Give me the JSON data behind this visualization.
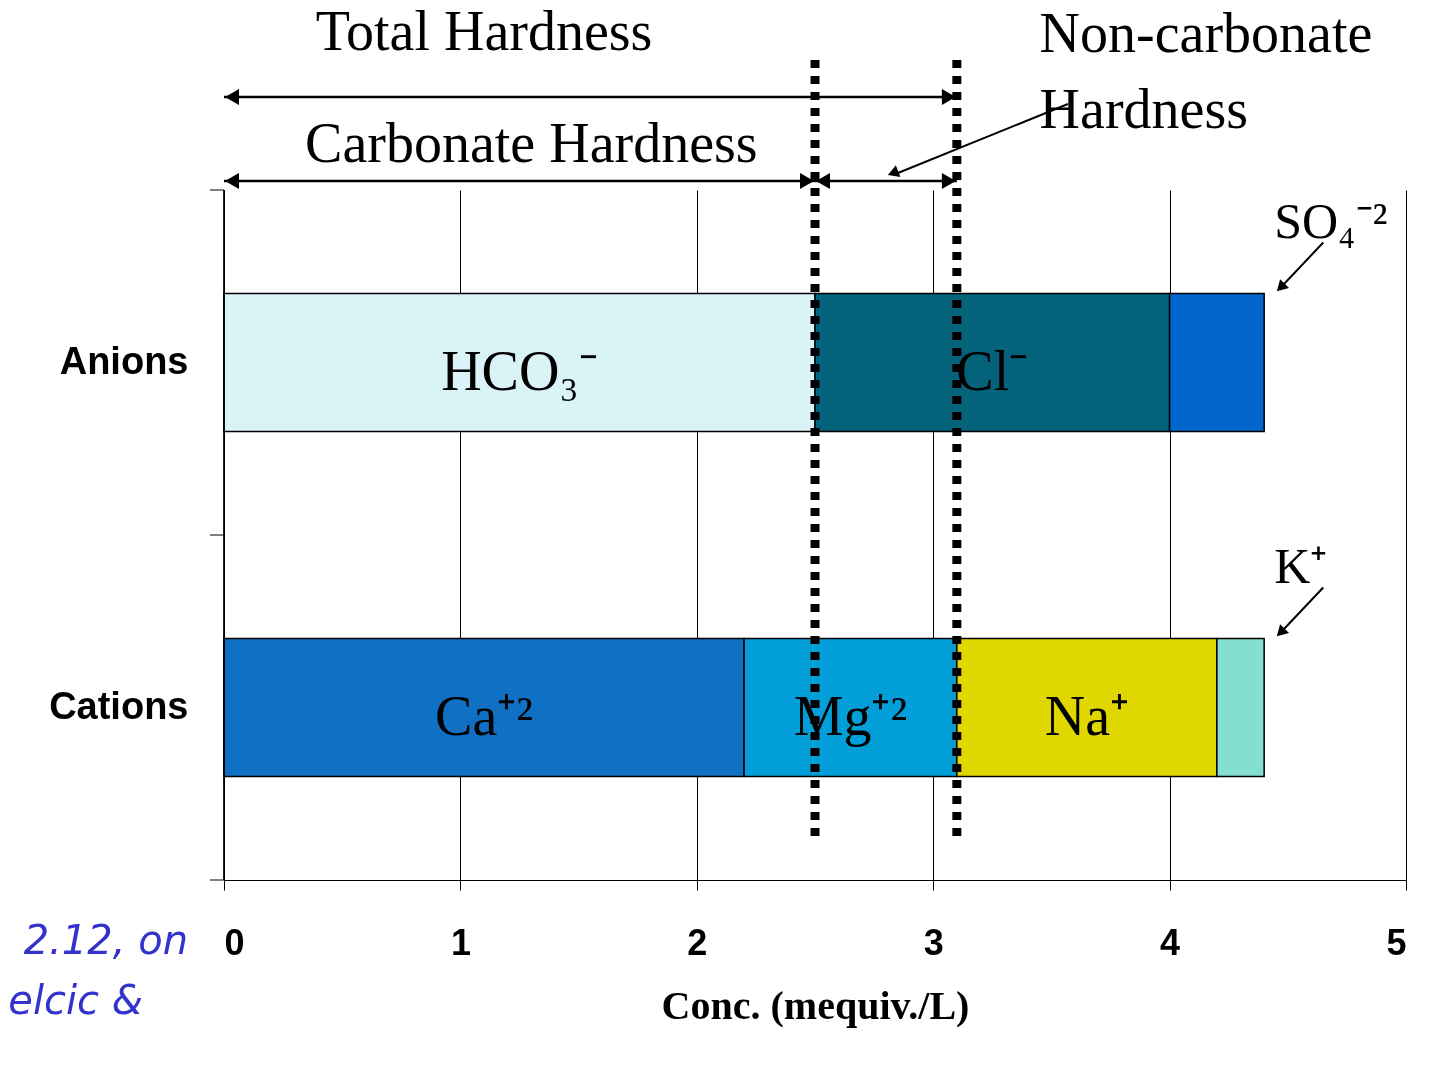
{
  "chart_data": {
    "type": "bar",
    "orientation": "horizontal",
    "stacked": true,
    "categories": [
      "Anions",
      "Cations"
    ],
    "series": [
      {
        "name": "HCO₃⁻",
        "color": "#daf3f7",
        "values": [
          2.5,
          null
        ]
      },
      {
        "name": "Cl⁻",
        "color": "#04627a",
        "values": [
          1.5,
          null
        ]
      },
      {
        "name": "SO₄⁻²",
        "color": "#0366cc",
        "values": [
          0.4,
          null
        ]
      },
      {
        "name": "Ca⁺²",
        "color": "#1070c4",
        "values": [
          null,
          2.2
        ]
      },
      {
        "name": "Mg⁺²",
        "color": "#029ed8",
        "values": [
          null,
          0.9
        ]
      },
      {
        "name": "Na⁺",
        "color": "#e0d700",
        "values": [
          null,
          1.1
        ]
      },
      {
        "name": "K⁺",
        "color": "#84dfd0",
        "values": [
          null,
          0.2
        ]
      }
    ],
    "xlabel": "Conc. (mequiv./L)",
    "xlim": [
      0,
      5
    ],
    "xticks": [
      0,
      1,
      2,
      3,
      4,
      5
    ],
    "grid": "x",
    "legend": false,
    "ref_lines": [
      {
        "axis": "x",
        "value": 2.5,
        "line_style": "dotted",
        "color": "#000000"
      },
      {
        "axis": "x",
        "value": 3.1,
        "line_style": "dotted",
        "color": "#000000"
      }
    ],
    "annotations": [
      "Total Hardness",
      "Carbonate Hardness",
      "Non-carbonate Hardness",
      "2.12, on",
      "elcic &"
    ]
  }
}
